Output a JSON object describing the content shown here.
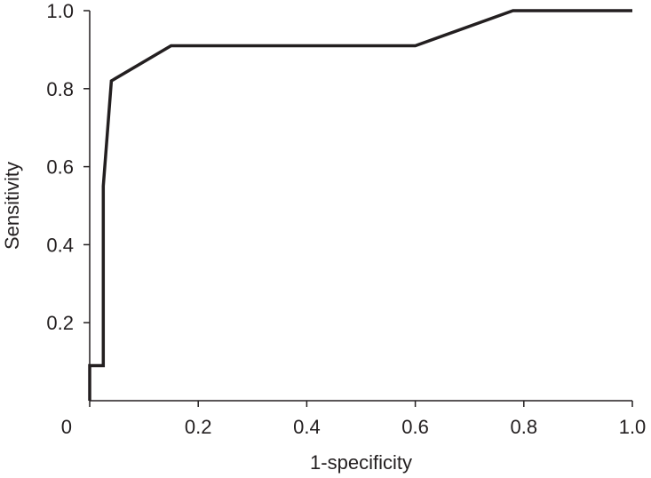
{
  "chart_data": {
    "type": "line",
    "xlabel": "1-specificity",
    "ylabel": "Sensitivity",
    "xlim": [
      0,
      1
    ],
    "ylim": [
      0,
      1
    ],
    "x_ticks": [
      0,
      0.2,
      0.4,
      0.6,
      0.8,
      1.0
    ],
    "x_tick_labels": [
      "0",
      "0.2",
      "0.4",
      "0.6",
      "0.8",
      "1.0"
    ],
    "y_ticks": [
      0.2,
      0.4,
      0.6,
      0.8,
      1.0
    ],
    "y_tick_labels": [
      "0.2",
      "0.4",
      "0.6",
      "0.8",
      "1.0"
    ],
    "grid": false,
    "series": [
      {
        "color": "#231f20",
        "x": [
          0,
          0,
          0.025,
          0.025,
          0.04,
          0.15,
          0.6,
          0.78,
          1.0
        ],
        "y": [
          0,
          0.09,
          0.09,
          0.55,
          0.82,
          0.91,
          0.91,
          1.0,
          1.0
        ]
      }
    ]
  }
}
